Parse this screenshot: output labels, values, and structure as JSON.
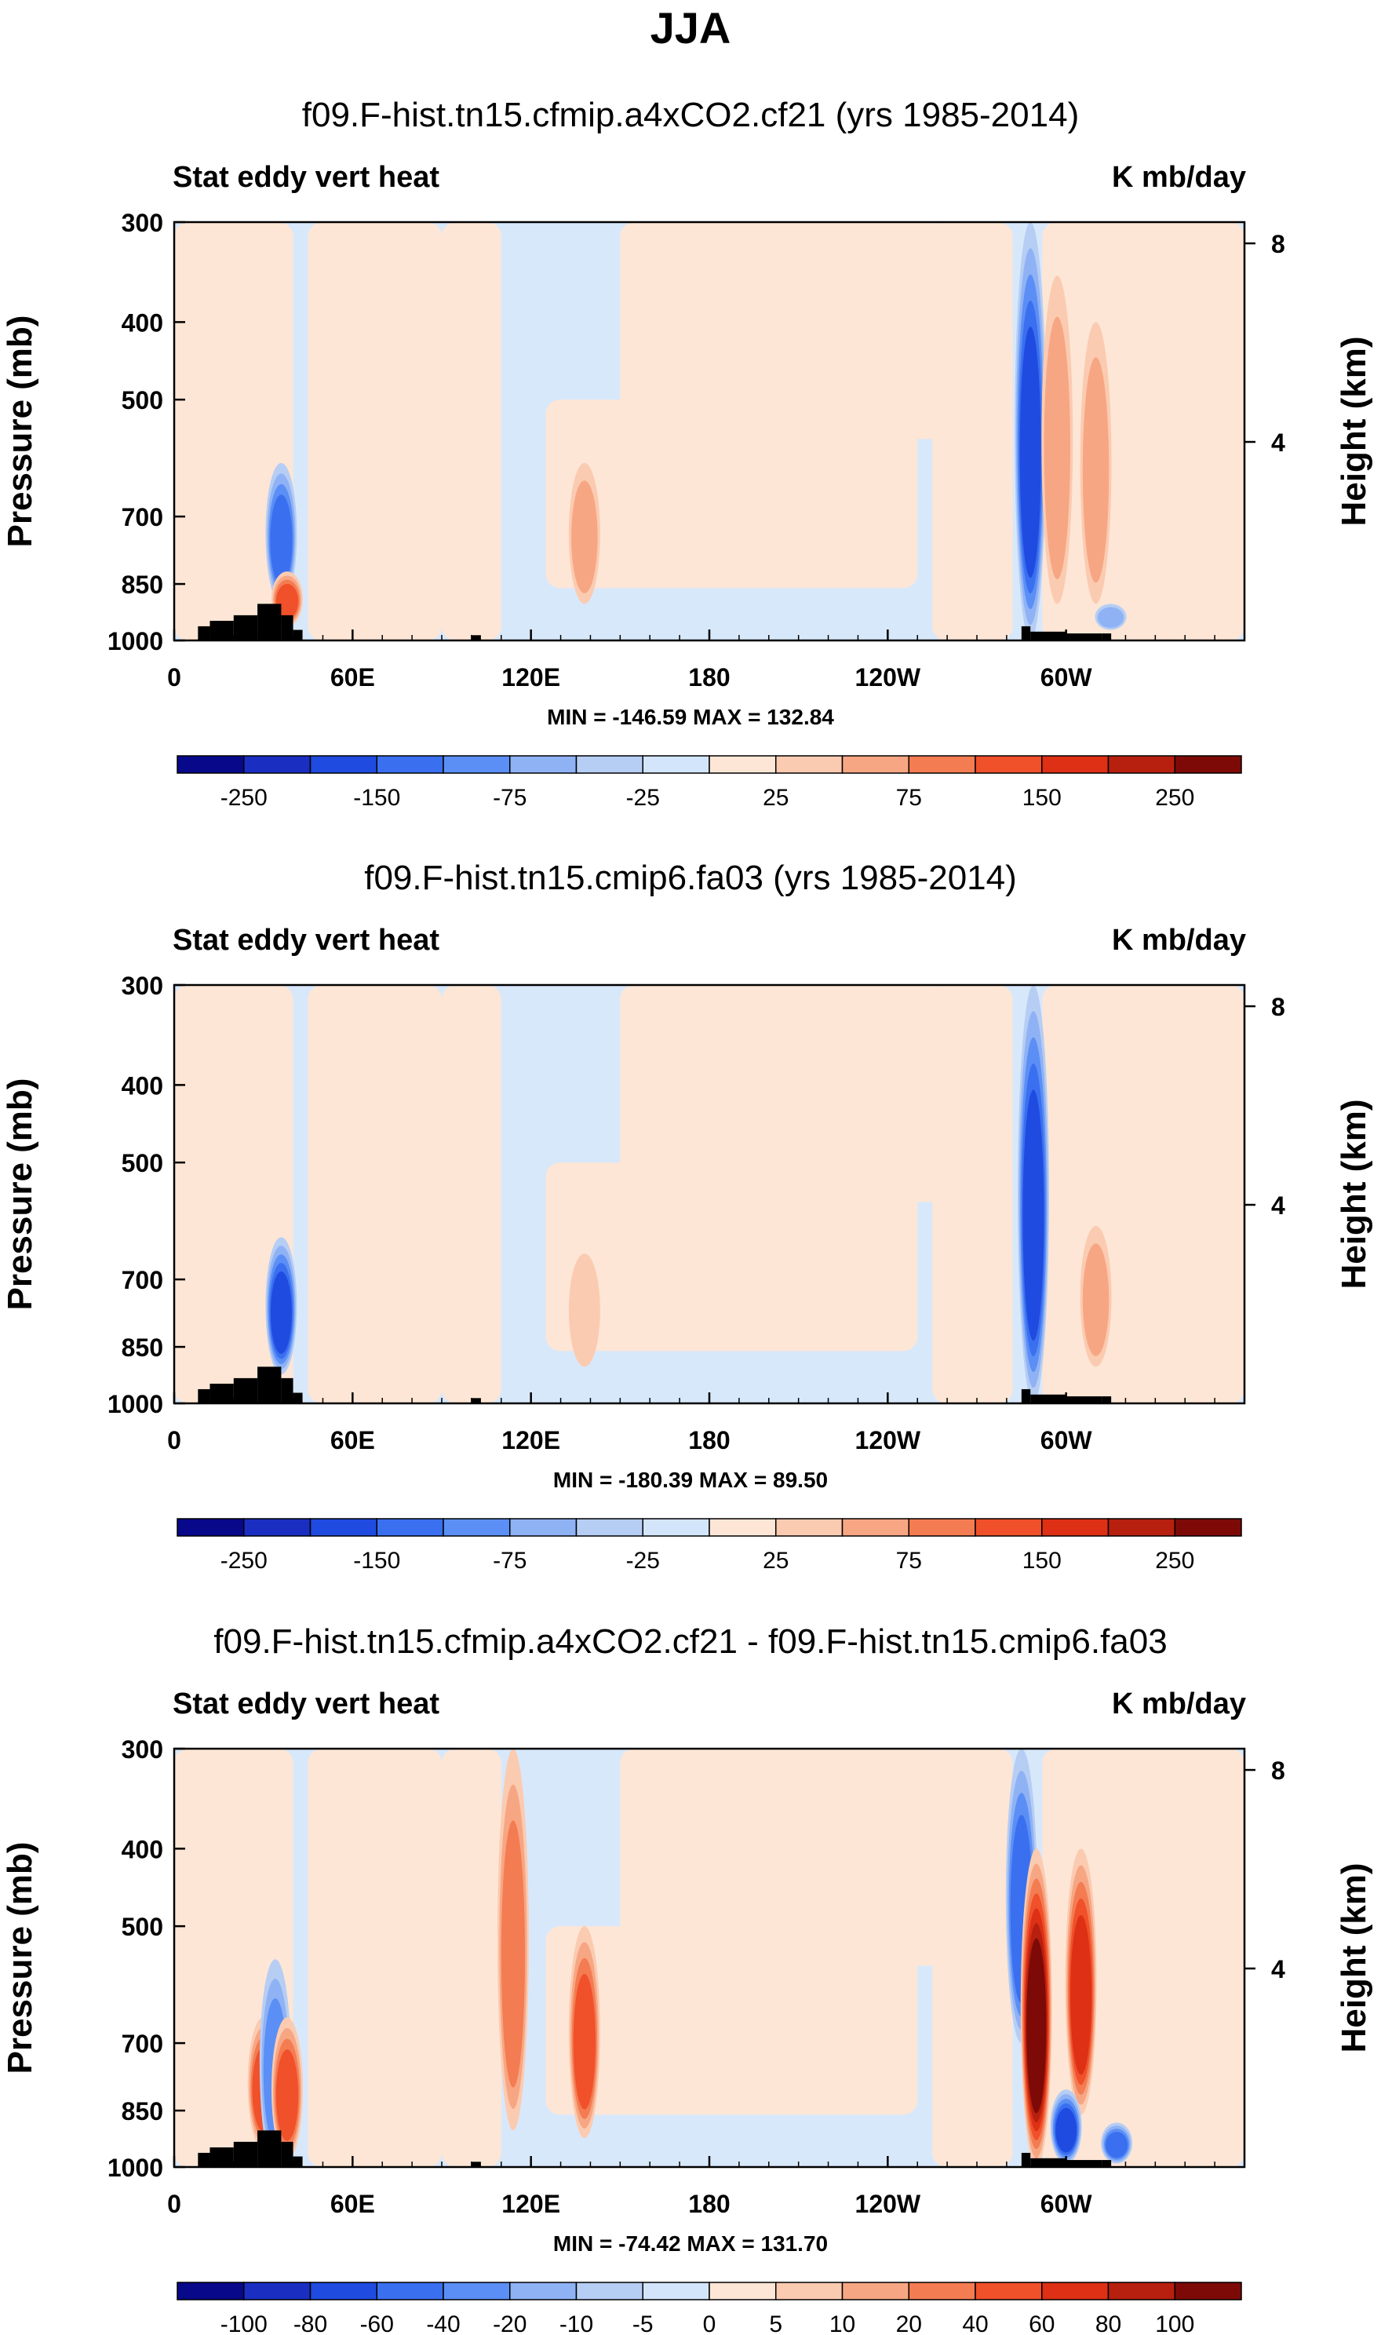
{
  "figure": {
    "title": "JJA"
  },
  "colors": {
    "neg": [
      "#08088a",
      "#1a2fc2",
      "#1f4be0",
      "#3a6ff0",
      "#5b8ff5",
      "#8fb2f5",
      "#b6cdf4",
      "#d3e5fb"
    ],
    "pos": [
      "#fde6d6",
      "#fbcbb1",
      "#f7a683",
      "#f47c52",
      "#f0502a",
      "#dd3015",
      "#b7200f",
      "#7d0a07"
    ],
    "topo": "#000000"
  },
  "panels": [
    {
      "title": "f09.F-hist.tn15.cfmip.a4xCO2.cf21 (yrs 1985-2014)",
      "left_label": "Stat eddy vert heat",
      "right_label": "K mb/day",
      "stats": "MIN = -146.59  MAX = 132.84",
      "colorbar_labels": [
        "-250",
        "-150",
        "-75",
        "-25",
        "25",
        "75",
        "150",
        "250"
      ]
    },
    {
      "title": "f09.F-hist.tn15.cmip6.fa03 (yrs 1985-2014)",
      "left_label": "Stat eddy vert heat",
      "right_label": "K mb/day",
      "stats": "MIN = -180.39  MAX =  89.50",
      "colorbar_labels": [
        "-250",
        "-150",
        "-75",
        "-25",
        "25",
        "75",
        "150",
        "250"
      ]
    },
    {
      "title": "f09.F-hist.tn15.cfmip.a4xCO2.cf21 - f09.F-hist.tn15.cmip6.fa03",
      "left_label": "Stat eddy vert heat",
      "right_label": "K mb/day",
      "stats": "MIN = -74.42  MAX = 131.70",
      "colorbar_labels": [
        "-100",
        "-80",
        "-60",
        "-40",
        "-20",
        "-10",
        "-5",
        "0",
        "5",
        "10",
        "20",
        "40",
        "60",
        "80",
        "100"
      ]
    }
  ],
  "chart_data": [
    {
      "type": "heatmap",
      "title": "f09.F-hist.tn15.cfmip.a4xCO2.cf21 (yrs 1985-2014)",
      "subtitle": "JJA",
      "xlabel": "",
      "ylabel": "Pressure (mb)",
      "y2label": "Height (km)",
      "x_ticks": [
        "0",
        "60E",
        "120E",
        "180",
        "120W",
        "60W"
      ],
      "y_ticks": [
        "300",
        "400",
        "500",
        "700",
        "850",
        "1000"
      ],
      "y2_ticks": [
        "8",
        "4"
      ],
      "units": "K mb/day",
      "min": -146.59,
      "max": 132.84,
      "colorbar_levels": [
        -250,
        -150,
        -75,
        -25,
        25,
        75,
        150,
        250
      ],
      "features": [
        {
          "kind": "neg",
          "lon": 36,
          "p_top": 600,
          "p_bot": 900,
          "level": 4
        },
        {
          "kind": "pos",
          "lon": 38,
          "p_top": 820,
          "p_bot": 960,
          "level": 4
        },
        {
          "kind": "pos",
          "lon": 138,
          "p_top": 600,
          "p_bot": 900,
          "level": 2
        },
        {
          "kind": "neg",
          "lon": 288,
          "p_top": 300,
          "p_bot": 1000,
          "level": 5
        },
        {
          "kind": "pos",
          "lon": 297,
          "p_top": 350,
          "p_bot": 900,
          "level": 2
        },
        {
          "kind": "pos",
          "lon": 310,
          "p_top": 400,
          "p_bot": 900,
          "level": 2
        },
        {
          "kind": "neg",
          "lon": 315,
          "p_top": 900,
          "p_bot": 970,
          "level": 2
        }
      ]
    },
    {
      "type": "heatmap",
      "title": "f09.F-hist.tn15.cmip6.fa03 (yrs 1985-2014)",
      "subtitle": "JJA",
      "xlabel": "",
      "ylabel": "Pressure (mb)",
      "y2label": "Height (km)",
      "x_ticks": [
        "0",
        "60E",
        "120E",
        "180",
        "120W",
        "60W"
      ],
      "y_ticks": [
        "300",
        "400",
        "500",
        "700",
        "850",
        "1000"
      ],
      "y2_ticks": [
        "8",
        "4"
      ],
      "units": "K mb/day",
      "min": -180.39,
      "max": 89.5,
      "colorbar_levels": [
        -250,
        -150,
        -75,
        -25,
        25,
        75,
        150,
        250
      ],
      "features": [
        {
          "kind": "neg",
          "lon": 36,
          "p_top": 620,
          "p_bot": 920,
          "level": 5
        },
        {
          "kind": "pos",
          "lon": 138,
          "p_top": 650,
          "p_bot": 900,
          "level": 1
        },
        {
          "kind": "neg",
          "lon": 289,
          "p_top": 300,
          "p_bot": 1000,
          "level": 5
        },
        {
          "kind": "pos",
          "lon": 310,
          "p_top": 600,
          "p_bot": 900,
          "level": 2
        }
      ]
    },
    {
      "type": "heatmap",
      "title": "f09.F-hist.tn15.cfmip.a4xCO2.cf21 - f09.F-hist.tn15.cmip6.fa03",
      "subtitle": "JJA",
      "xlabel": "",
      "ylabel": "Pressure (mb)",
      "y2label": "Height (km)",
      "x_ticks": [
        "0",
        "60E",
        "120E",
        "180",
        "120W",
        "60W"
      ],
      "y_ticks": [
        "300",
        "400",
        "500",
        "700",
        "850",
        "1000"
      ],
      "y2_ticks": [
        "8",
        "4"
      ],
      "units": "K mb/day",
      "min": -74.42,
      "max": 131.7,
      "colorbar_levels": [
        -100,
        -80,
        -60,
        -40,
        -20,
        -10,
        -5,
        0,
        5,
        10,
        20,
        40,
        60,
        80,
        100
      ],
      "features": [
        {
          "kind": "pos",
          "lon": 30,
          "p_top": 650,
          "p_bot": 950,
          "level": 4
        },
        {
          "kind": "neg",
          "lon": 34,
          "p_top": 550,
          "p_bot": 1000,
          "level": 3
        },
        {
          "kind": "pos",
          "lon": 38,
          "p_top": 650,
          "p_bot": 980,
          "level": 4
        },
        {
          "kind": "pos",
          "lon": 114,
          "p_top": 300,
          "p_bot": 900,
          "level": 3
        },
        {
          "kind": "pos",
          "lon": 138,
          "p_top": 500,
          "p_bot": 920,
          "level": 4
        },
        {
          "kind": "neg",
          "lon": 285,
          "p_top": 300,
          "p_bot": 700,
          "level": 4
        },
        {
          "kind": "pos",
          "lon": 290,
          "p_top": 400,
          "p_bot": 1000,
          "level": 7
        },
        {
          "kind": "pos",
          "lon": 305,
          "p_top": 400,
          "p_bot": 860,
          "level": 5
        },
        {
          "kind": "neg",
          "lon": 300,
          "p_top": 800,
          "p_bot": 990,
          "level": 5
        },
        {
          "kind": "neg",
          "lon": 317,
          "p_top": 880,
          "p_bot": 990,
          "level": 4
        }
      ]
    }
  ]
}
